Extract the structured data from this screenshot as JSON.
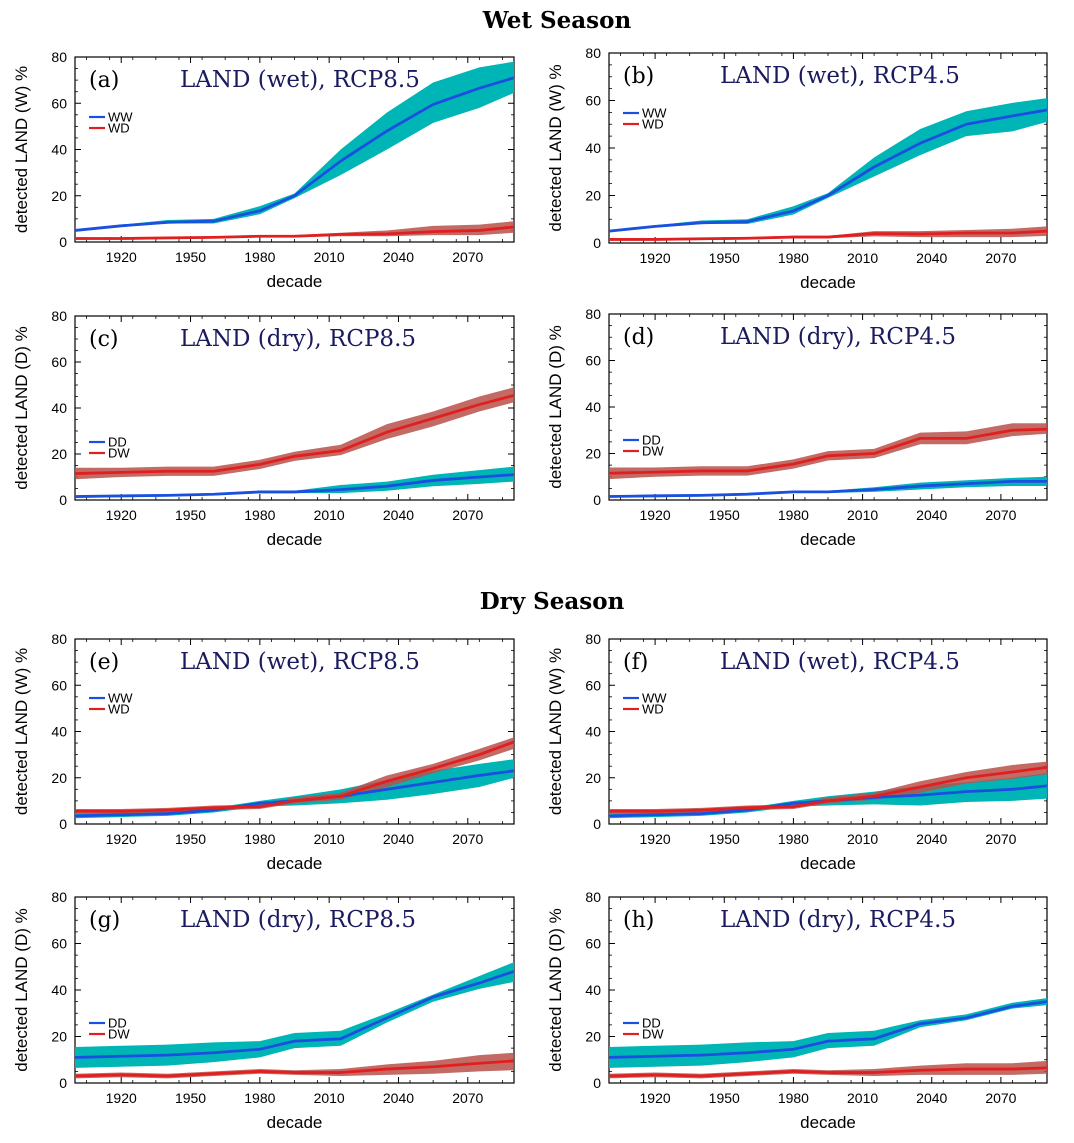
{
  "sections": [
    {
      "title": "Wet Season"
    },
    {
      "title": "Dry Season"
    }
  ],
  "colors": {
    "blue_line": "#1a4fe0",
    "blue_band": "#00b5b5",
    "red_line": "#e02020",
    "red_band": "#b8504a"
  },
  "chart_data": [
    {
      "type": "line",
      "panel": "(a)",
      "title": "LAND (wet), RCP8.5",
      "xlabel": "decade",
      "ylabel": "detected LAND (W) %",
      "xlim": [
        1900,
        2090
      ],
      "ylim": [
        0,
        80
      ],
      "xticks": [
        1920,
        1950,
        1980,
        2010,
        2040,
        2070
      ],
      "yticks": [
        0,
        20,
        40,
        60,
        80
      ],
      "legend": "top-left",
      "x": [
        1900,
        1920,
        1940,
        1960,
        1980,
        1995,
        2015,
        2035,
        2055,
        2075,
        2090
      ],
      "series": [
        {
          "name": "WW",
          "color": "blue",
          "values": [
            5,
            7,
            8.5,
            9,
            13.5,
            20,
            35,
            48,
            59.5,
            66.5,
            71
          ],
          "lower": [
            4.5,
            6.5,
            8,
            8,
            12,
            19,
            29,
            40,
            51.5,
            58,
            64.5
          ],
          "upper": [
            5.5,
            7.5,
            9.5,
            10,
            15.5,
            21,
            40,
            56,
            69,
            75.5,
            78
          ]
        },
        {
          "name": "WD",
          "color": "red",
          "values": [
            1.5,
            1.5,
            1.8,
            2,
            2.5,
            2.5,
            3.3,
            3.5,
            4.5,
            5,
            6.5
          ],
          "lower": [
            1,
            1,
            1.2,
            1.5,
            2,
            2,
            2.5,
            2.5,
            3,
            3,
            4
          ],
          "upper": [
            2,
            2,
            2.2,
            2.5,
            3,
            3,
            4,
            5,
            7,
            7.5,
            9
          ]
        }
      ]
    },
    {
      "type": "line",
      "panel": "(b)",
      "title": "LAND (wet), RCP4.5",
      "xlabel": "decade",
      "ylabel": "detected LAND (W) %",
      "xlim": [
        1900,
        2090
      ],
      "ylim": [
        0,
        80
      ],
      "xticks": [
        1920,
        1950,
        1980,
        2010,
        2040,
        2070
      ],
      "yticks": [
        0,
        20,
        40,
        60,
        80
      ],
      "legend": "top-left",
      "x": [
        1900,
        1920,
        1940,
        1960,
        1980,
        1995,
        2015,
        2035,
        2055,
        2075,
        2090
      ],
      "series": [
        {
          "name": "WW",
          "color": "blue",
          "values": [
            5,
            7,
            8.5,
            9,
            13.5,
            20,
            32,
            42,
            50,
            53.5,
            56
          ],
          "lower": [
            4.5,
            6.5,
            8,
            8,
            12,
            19,
            28,
            37,
            45,
            47,
            51
          ],
          "upper": [
            5.5,
            7.5,
            9.5,
            10,
            15.5,
            21,
            36,
            48,
            55.5,
            59,
            61
          ]
        },
        {
          "name": "WD",
          "color": "red",
          "values": [
            1.5,
            1.5,
            1.8,
            2,
            2.5,
            2.5,
            4,
            3.8,
            4.2,
            4.2,
            5
          ],
          "lower": [
            1,
            1,
            1.2,
            1.5,
            2,
            2,
            2.8,
            2.5,
            2.5,
            2.5,
            3
          ],
          "upper": [
            2,
            2,
            2.2,
            2.5,
            3,
            3,
            5,
            5,
            5.5,
            6,
            7
          ]
        }
      ]
    },
    {
      "type": "line",
      "panel": "(c)",
      "title": "LAND (dry), RCP8.5",
      "xlabel": "decade",
      "ylabel": "detected LAND (D) %",
      "xlim": [
        1900,
        2090
      ],
      "ylim": [
        0,
        80
      ],
      "xticks": [
        1920,
        1950,
        1980,
        2010,
        2040,
        2070
      ],
      "yticks": [
        0,
        20,
        40,
        60,
        80
      ],
      "legend": "middle-left",
      "x": [
        1900,
        1920,
        1940,
        1960,
        1980,
        1995,
        2015,
        2035,
        2055,
        2075,
        2090
      ],
      "series": [
        {
          "name": "DD",
          "color": "blue",
          "values": [
            1.5,
            1.8,
            2,
            2.5,
            3.5,
            3.5,
            4.5,
            6,
            8.5,
            10,
            11
          ],
          "lower": [
            1,
            1.2,
            1.5,
            2,
            3,
            3,
            3,
            4,
            6,
            7,
            8
          ],
          "upper": [
            2,
            2.3,
            2.5,
            3,
            4,
            4,
            6.5,
            8,
            11,
            13,
            14.5
          ]
        },
        {
          "name": "DW",
          "color": "red",
          "values": [
            11.5,
            12,
            12.5,
            12.5,
            15.5,
            19,
            21.5,
            29.5,
            35.5,
            41.5,
            45.5
          ],
          "lower": [
            9,
            10,
            10.5,
            10.5,
            13.5,
            17,
            19.5,
            26.5,
            32,
            38.5,
            42.5
          ],
          "upper": [
            14,
            14,
            14.5,
            14.5,
            17.5,
            21,
            24,
            33,
            38.5,
            45,
            49
          ]
        }
      ]
    },
    {
      "type": "line",
      "panel": "(d)",
      "title": "LAND (dry), RCP4.5",
      "xlabel": "decade",
      "ylabel": "detected LAND (D) %",
      "xlim": [
        1900,
        2090
      ],
      "ylim": [
        0,
        80
      ],
      "xticks": [
        1920,
        1950,
        1980,
        2010,
        2040,
        2070
      ],
      "yticks": [
        0,
        20,
        40,
        60,
        80
      ],
      "legend": "middle-left",
      "x": [
        1900,
        1920,
        1940,
        1960,
        1980,
        1995,
        2015,
        2035,
        2055,
        2075,
        2090
      ],
      "series": [
        {
          "name": "DD",
          "color": "blue",
          "values": [
            1.5,
            1.8,
            2,
            2.5,
            3.5,
            3.5,
            4.5,
            6,
            7,
            8,
            8
          ],
          "lower": [
            1,
            1.2,
            1.5,
            2,
            3,
            3,
            3.5,
            4.5,
            5.5,
            6,
            6
          ],
          "upper": [
            2,
            2.3,
            2.5,
            3,
            4,
            4,
            5.5,
            7.5,
            8.5,
            9.5,
            10
          ]
        },
        {
          "name": "DW",
          "color": "red",
          "values": [
            11.5,
            12,
            12.5,
            12.5,
            15.5,
            19,
            20,
            26.5,
            26.5,
            30,
            30.5
          ],
          "lower": [
            9,
            10,
            10.5,
            10.5,
            13.5,
            17,
            18,
            24,
            24,
            27.5,
            28.5
          ],
          "upper": [
            14,
            14,
            14.5,
            14.5,
            17.5,
            21,
            22,
            29,
            29.5,
            33,
            33
          ]
        }
      ]
    },
    {
      "type": "line",
      "panel": "(e)",
      "title": "LAND (wet), RCP8.5",
      "xlabel": "decade",
      "ylabel": "detected LAND (W) %",
      "xlim": [
        1900,
        2090
      ],
      "ylim": [
        0,
        80
      ],
      "xticks": [
        1920,
        1950,
        1980,
        2010,
        2040,
        2070
      ],
      "yticks": [
        0,
        20,
        40,
        60,
        80
      ],
      "legend": "upper-left",
      "x": [
        1900,
        1920,
        1940,
        1960,
        1980,
        1995,
        2015,
        2035,
        2055,
        2075,
        2090
      ],
      "series": [
        {
          "name": "WW",
          "color": "blue",
          "values": [
            3.5,
            4,
            4.5,
            6,
            9,
            10,
            12,
            15,
            18,
            21,
            23
          ],
          "lower": [
            2.5,
            3,
            3.5,
            5,
            7.5,
            8,
            9,
            10.5,
            13,
            16,
            20
          ],
          "upper": [
            4.5,
            5,
            5.5,
            7,
            10,
            12,
            15,
            19,
            23,
            26,
            28
          ]
        },
        {
          "name": "WD",
          "color": "red",
          "values": [
            5.5,
            5.5,
            6,
            7,
            7.5,
            10,
            12,
            18.5,
            24,
            30,
            35.5
          ],
          "lower": [
            4.5,
            4.5,
            5,
            6,
            6.5,
            9,
            10.5,
            16,
            22,
            27.5,
            32.5
          ],
          "upper": [
            6.5,
            6.5,
            7,
            8,
            8.5,
            11.5,
            13.5,
            21,
            26,
            32.5,
            37.5
          ]
        }
      ]
    },
    {
      "type": "line",
      "panel": "(f)",
      "title": "LAND (wet), RCP4.5",
      "xlabel": "decade",
      "ylabel": "detected LAND (W) %",
      "xlim": [
        1900,
        2090
      ],
      "ylim": [
        0,
        80
      ],
      "xticks": [
        1920,
        1950,
        1980,
        2010,
        2040,
        2070
      ],
      "yticks": [
        0,
        20,
        40,
        60,
        80
      ],
      "legend": "upper-left",
      "x": [
        1900,
        1920,
        1940,
        1960,
        1980,
        1995,
        2015,
        2035,
        2055,
        2075,
        2090
      ],
      "series": [
        {
          "name": "WW",
          "color": "blue",
          "values": [
            3.5,
            4,
            4.5,
            6,
            9,
            10,
            11.5,
            12.5,
            14,
            15,
            16.5
          ],
          "lower": [
            2.5,
            3,
            3.5,
            5,
            7.5,
            8,
            8.5,
            8,
            9.5,
            10,
            11
          ],
          "upper": [
            4.5,
            5,
            5.5,
            7,
            10,
            12,
            14,
            16.5,
            18,
            20,
            22
          ]
        },
        {
          "name": "WD",
          "color": "red",
          "values": [
            5.5,
            5.5,
            6,
            7,
            7.5,
            10,
            12,
            16,
            20,
            22.5,
            24.5
          ],
          "lower": [
            4.5,
            4.5,
            5,
            6,
            6.5,
            9,
            10.5,
            13.5,
            17.5,
            19.5,
            21.5
          ],
          "upper": [
            6.5,
            6.5,
            7,
            8,
            8.5,
            11.5,
            13.5,
            18.5,
            22.5,
            25.5,
            27
          ]
        }
      ]
    },
    {
      "type": "line",
      "panel": "(g)",
      "title": "LAND (dry), RCP8.5",
      "xlabel": "decade",
      "ylabel": "detected LAND (D) %",
      "xlim": [
        1900,
        2090
      ],
      "ylim": [
        0,
        80
      ],
      "xticks": [
        1920,
        1950,
        1980,
        2010,
        2040,
        2070
      ],
      "yticks": [
        0,
        20,
        40,
        60,
        80
      ],
      "legend": "middle-left",
      "x": [
        1900,
        1920,
        1940,
        1960,
        1980,
        1995,
        2015,
        2035,
        2055,
        2075,
        2090
      ],
      "series": [
        {
          "name": "DD",
          "color": "blue",
          "values": [
            11,
            11.5,
            12,
            13,
            14.5,
            18,
            19,
            28,
            37,
            43,
            48
          ],
          "lower": [
            6.5,
            7,
            7.5,
            9,
            11,
            15,
            16,
            26,
            35,
            40.5,
            43.5
          ],
          "upper": [
            15.5,
            16,
            16.5,
            17.5,
            18,
            21.5,
            22.5,
            30,
            38,
            46,
            52
          ]
        },
        {
          "name": "DW",
          "color": "red",
          "values": [
            3,
            3.5,
            3,
            4,
            5,
            4.5,
            4.5,
            6,
            7,
            8.5,
            9.5
          ],
          "lower": [
            2,
            2.5,
            2,
            3,
            4,
            3.5,
            3,
            3.5,
            4,
            5,
            5.5
          ],
          "upper": [
            4,
            4.5,
            4,
            5,
            6,
            5.5,
            6,
            8,
            9.5,
            12,
            13
          ]
        }
      ]
    },
    {
      "type": "line",
      "panel": "(h)",
      "title": "LAND (dry), RCP4.5",
      "xlabel": "decade",
      "ylabel": "detected LAND (D) %",
      "xlim": [
        1900,
        2090
      ],
      "ylim": [
        0,
        80
      ],
      "xticks": [
        1920,
        1950,
        1980,
        2010,
        2040,
        2070
      ],
      "yticks": [
        0,
        20,
        40,
        60,
        80
      ],
      "legend": "middle-left",
      "x": [
        1900,
        1920,
        1940,
        1960,
        1980,
        1995,
        2015,
        2035,
        2055,
        2075,
        2090
      ],
      "series": [
        {
          "name": "DD",
          "color": "blue",
          "values": [
            11,
            11.5,
            12,
            13,
            14.5,
            18,
            19,
            25.5,
            28,
            33,
            35
          ],
          "lower": [
            6.5,
            7,
            7.5,
            9,
            11,
            15,
            16,
            24,
            27,
            32,
            33.5
          ],
          "upper": [
            15.5,
            16,
            16.5,
            17.5,
            18,
            21.5,
            22.5,
            27,
            29.5,
            34.5,
            36.5
          ]
        },
        {
          "name": "DW",
          "color": "red",
          "values": [
            3,
            3.5,
            3,
            4,
            5,
            4.5,
            4.5,
            5.5,
            6,
            6,
            6.5
          ],
          "lower": [
            2,
            2.5,
            2,
            3,
            4,
            3.5,
            3,
            3.5,
            3.5,
            3.5,
            4
          ],
          "upper": [
            4,
            4.5,
            4,
            5,
            6,
            5.5,
            6,
            7.5,
            8.5,
            8.5,
            9.5
          ]
        }
      ]
    }
  ]
}
